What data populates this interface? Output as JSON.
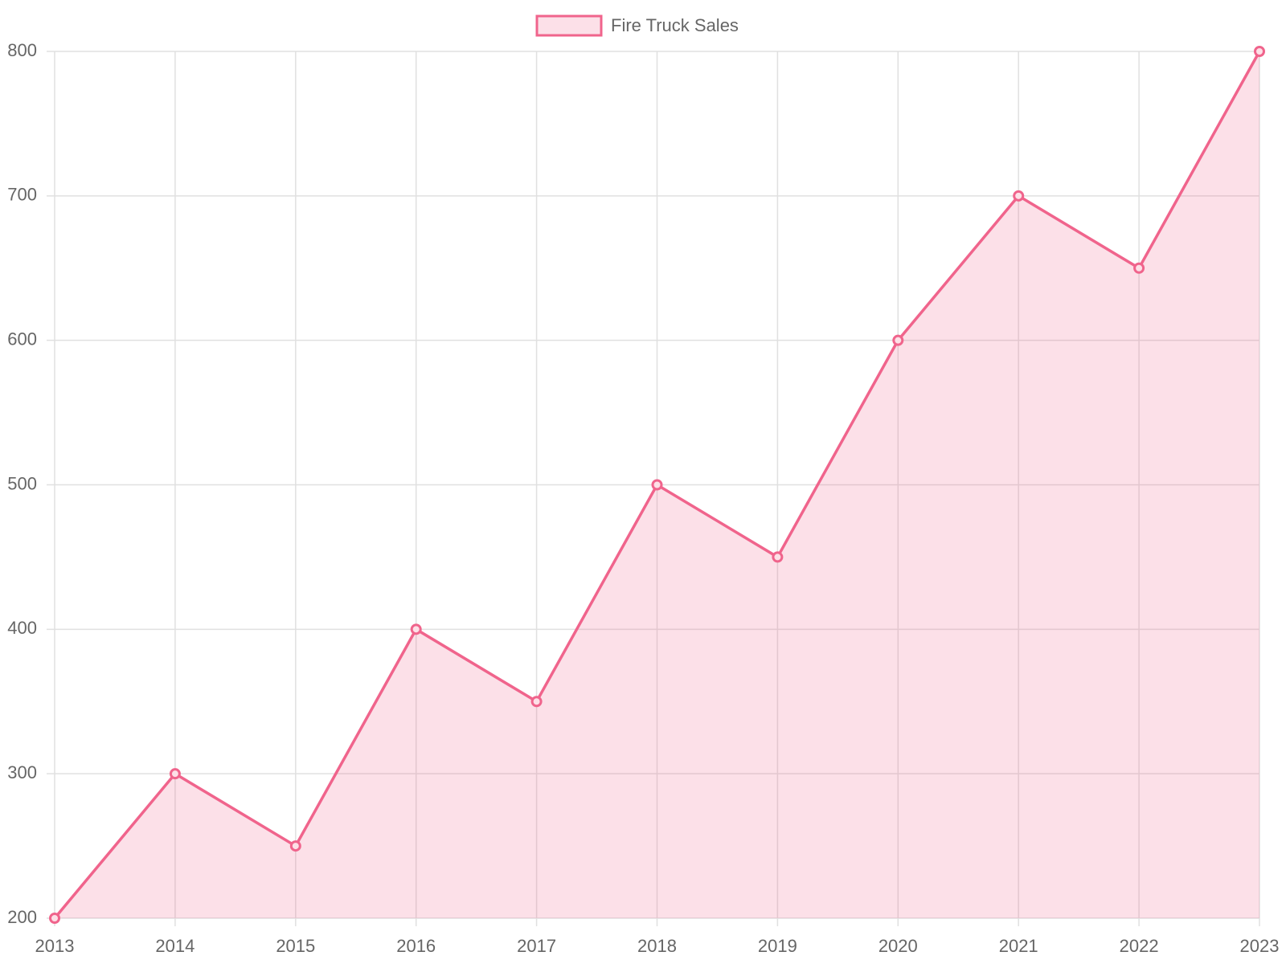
{
  "chart_data": {
    "type": "line",
    "categories": [
      "2013",
      "2014",
      "2015",
      "2016",
      "2017",
      "2018",
      "2019",
      "2020",
      "2021",
      "2022",
      "2023"
    ],
    "series": [
      {
        "name": "Fire Truck Sales",
        "color": "#f0648c",
        "values": [
          200,
          300,
          250,
          400,
          350,
          500,
          450,
          600,
          700,
          650,
          800
        ]
      }
    ],
    "ylim": [
      200,
      800
    ],
    "yticks": [
      200,
      300,
      400,
      500,
      600,
      700,
      800
    ],
    "grid": true,
    "area": true,
    "legend": "top"
  }
}
